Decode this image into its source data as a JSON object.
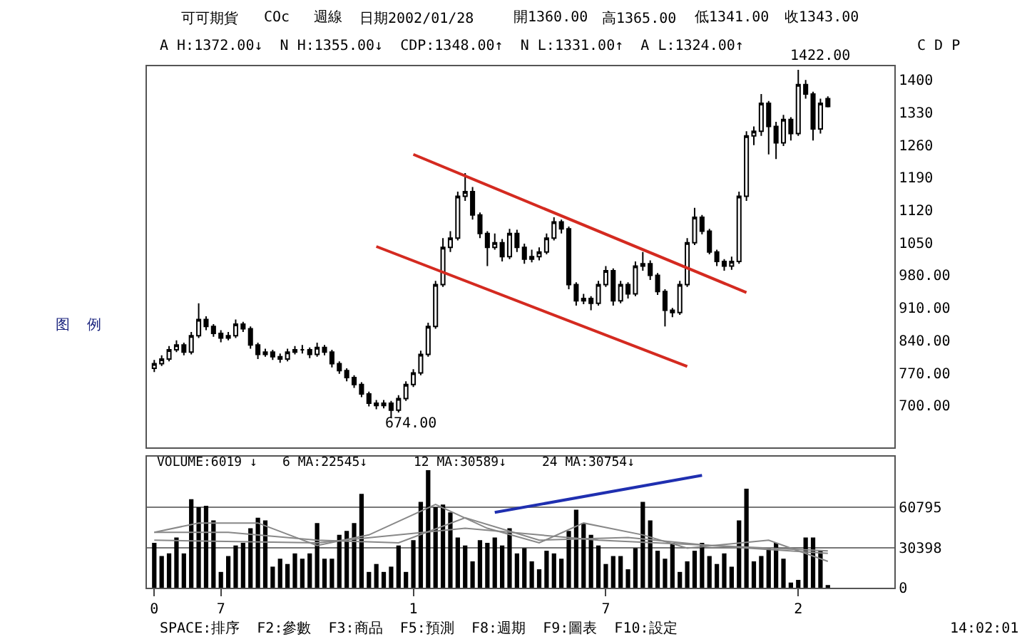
{
  "chart_data": [
    {
      "type": "candlestick",
      "grid": false,
      "tick_labels": "y",
      "categories": [
        null,
        null,
        null,
        null,
        null,
        null,
        null,
        null,
        null,
        null,
        null,
        null,
        null,
        null,
        null,
        null,
        null,
        null,
        null,
        null,
        null,
        null,
        null,
        null,
        null,
        null,
        null,
        null,
        null,
        null,
        null,
        null,
        null,
        null,
        null,
        null,
        null,
        null,
        null,
        null,
        null,
        null,
        null,
        null,
        null,
        null,
        null,
        null,
        null,
        null,
        null,
        null,
        null,
        null,
        null,
        null,
        null,
        null,
        null,
        null,
        null,
        null,
        null,
        null,
        null,
        null,
        null,
        null,
        null,
        null,
        null,
        null,
        null,
        null,
        null,
        null,
        null,
        null,
        null,
        null,
        null,
        null,
        null,
        null,
        null,
        null,
        null,
        null,
        null,
        null,
        null,
        null
      ],
      "ohlc": [
        [
          780,
          798,
          772,
          790
        ],
        [
          790,
          808,
          785,
          800
        ],
        [
          800,
          828,
          795,
          820
        ],
        [
          820,
          840,
          815,
          830
        ],
        [
          830,
          835,
          808,
          815
        ],
        [
          815,
          858,
          810,
          850
        ],
        [
          850,
          920,
          845,
          885
        ],
        [
          885,
          892,
          862,
          870
        ],
        [
          870,
          875,
          848,
          855
        ],
        [
          855,
          862,
          836,
          845
        ],
        [
          845,
          858,
          840,
          850
        ],
        [
          850,
          885,
          845,
          875
        ],
        [
          875,
          880,
          858,
          865
        ],
        [
          865,
          870,
          822,
          830
        ],
        [
          830,
          835,
          800,
          810
        ],
        [
          810,
          822,
          805,
          815
        ],
        [
          815,
          820,
          798,
          805
        ],
        [
          805,
          812,
          792,
          800
        ],
        [
          800,
          822,
          795,
          815
        ],
        [
          815,
          828,
          810,
          820
        ],
        [
          820,
          830,
          812,
          820
        ],
        [
          820,
          825,
          802,
          810
        ],
        [
          810,
          835,
          805,
          825
        ],
        [
          825,
          830,
          808,
          815
        ],
        [
          815,
          820,
          782,
          790
        ],
        [
          790,
          795,
          768,
          775
        ],
        [
          775,
          780,
          752,
          760
        ],
        [
          760,
          765,
          738,
          745
        ],
        [
          745,
          750,
          718,
          725
        ],
        [
          725,
          730,
          698,
          705
        ],
        [
          705,
          712,
          692,
          700
        ],
        [
          700,
          712,
          694,
          705
        ],
        [
          705,
          710,
          674,
          690
        ],
        [
          690,
          722,
          685,
          715
        ],
        [
          715,
          752,
          710,
          745
        ],
        [
          745,
          778,
          740,
          770
        ],
        [
          770,
          818,
          765,
          810
        ],
        [
          810,
          878,
          805,
          870
        ],
        [
          870,
          968,
          865,
          960
        ],
        [
          960,
          1060,
          955,
          1040
        ],
        [
          1040,
          1075,
          1030,
          1060
        ],
        [
          1060,
          1160,
          1055,
          1150
        ],
        [
          1150,
          1200,
          1140,
          1160
        ],
        [
          1160,
          1170,
          1100,
          1110
        ],
        [
          1110,
          1115,
          1060,
          1070
        ],
        [
          1070,
          1075,
          1000,
          1040
        ],
        [
          1040,
          1070,
          1035,
          1050
        ],
        [
          1050,
          1058,
          1010,
          1020
        ],
        [
          1020,
          1080,
          1015,
          1070
        ],
        [
          1070,
          1078,
          1030,
          1040
        ],
        [
          1040,
          1048,
          1005,
          1015
        ],
        [
          1015,
          1035,
          1008,
          1020
        ],
        [
          1020,
          1040,
          1012,
          1030
        ],
        [
          1030,
          1070,
          1025,
          1060
        ],
        [
          1060,
          1105,
          1055,
          1095
        ],
        [
          1095,
          1100,
          1070,
          1080
        ],
        [
          1080,
          1085,
          950,
          960
        ],
        [
          960,
          965,
          915,
          925
        ],
        [
          925,
          940,
          918,
          930
        ],
        [
          930,
          935,
          905,
          920
        ],
        [
          920,
          968,
          915,
          960
        ],
        [
          960,
          1000,
          955,
          990
        ],
        [
          990,
          995,
          915,
          925
        ],
        [
          925,
          968,
          920,
          960
        ],
        [
          960,
          965,
          930,
          940
        ],
        [
          940,
          1010,
          935,
          1000
        ],
        [
          1000,
          1030,
          990,
          1005
        ],
        [
          1005,
          1012,
          970,
          980
        ],
        [
          980,
          985,
          938,
          945
        ],
        [
          945,
          950,
          870,
          905
        ],
        [
          905,
          910,
          890,
          900
        ],
        [
          900,
          968,
          895,
          960
        ],
        [
          960,
          1060,
          955,
          1050
        ],
        [
          1050,
          1125,
          1045,
          1105
        ],
        [
          1105,
          1110,
          1068,
          1075
        ],
        [
          1075,
          1080,
          1025,
          1030
        ],
        [
          1030,
          1035,
          1000,
          1010
        ],
        [
          1010,
          1015,
          990,
          1000
        ],
        [
          1000,
          1020,
          992,
          1010
        ],
        [
          1010,
          1160,
          1005,
          1150
        ],
        [
          1150,
          1290,
          1140,
          1280
        ],
        [
          1280,
          1300,
          1260,
          1290
        ],
        [
          1290,
          1370,
          1280,
          1350
        ],
        [
          1350,
          1355,
          1240,
          1300
        ],
        [
          1300,
          1310,
          1230,
          1265
        ],
        [
          1265,
          1325,
          1258,
          1315
        ],
        [
          1315,
          1320,
          1270,
          1285
        ],
        [
          1285,
          1422,
          1280,
          1390
        ],
        [
          1390,
          1400,
          1360,
          1370
        ],
        [
          1370,
          1375,
          1270,
          1295
        ],
        [
          1295,
          1360,
          1285,
          1350
        ],
        [
          1360,
          1365,
          1341,
          1343
        ]
      ],
      "series": [
        {
          "type": "line",
          "color": "#d42a20",
          "values": [
            null,
            null,
            null,
            null,
            null,
            null,
            null,
            null,
            null,
            null,
            null,
            null,
            null,
            null,
            null,
            null,
            null,
            null,
            null,
            null,
            null,
            null,
            null,
            null,
            null,
            null,
            null,
            null,
            null,
            null,
            null,
            null,
            null,
            null,
            null,
            1240,
            null,
            null,
            null,
            null,
            null,
            null,
            null,
            null,
            null,
            null,
            null,
            null,
            null,
            null,
            null,
            null,
            null,
            null,
            null,
            null,
            null,
            null,
            null,
            null,
            null,
            null,
            null,
            null,
            null,
            null,
            null,
            null,
            null,
            null,
            null,
            null,
            null,
            null,
            null,
            null,
            null,
            null,
            null,
            null,
            943,
            null,
            null,
            null,
            null,
            null,
            null,
            null,
            null,
            null,
            null,
            null
          ]
        },
        {
          "type": "line",
          "color": "#d42a20",
          "values": [
            null,
            null,
            null,
            null,
            null,
            null,
            null,
            null,
            null,
            null,
            null,
            null,
            null,
            null,
            null,
            null,
            null,
            null,
            null,
            null,
            null,
            null,
            null,
            null,
            null,
            null,
            null,
            null,
            null,
            null,
            1042,
            null,
            null,
            null,
            null,
            null,
            null,
            null,
            null,
            null,
            null,
            null,
            null,
            null,
            null,
            null,
            null,
            null,
            null,
            null,
            null,
            null,
            null,
            null,
            null,
            null,
            null,
            null,
            null,
            null,
            null,
            null,
            null,
            null,
            null,
            null,
            null,
            null,
            null,
            null,
            null,
            null,
            784,
            null,
            null,
            null,
            null,
            null,
            null,
            null,
            null,
            null,
            null,
            null,
            null,
            null,
            null,
            null,
            null,
            null,
            null,
            null
          ]
        }
      ],
      "ylim": [
        610,
        1430
      ],
      "yticks": [
        {
          "value": 700,
          "label": "700.00"
        },
        {
          "value": 770,
          "label": "770.00"
        },
        {
          "value": 840,
          "label": "840.00"
        },
        {
          "value": 910,
          "label": "910.00"
        },
        {
          "value": 980,
          "label": "980.00"
        },
        1050,
        1120,
        1190,
        1260,
        1330,
        1400
      ],
      "annotations": [
        "可可期貨",
        "COc",
        "週線",
        "日期2002/01/28",
        "開1360.00",
        "高1365.00",
        "低1341.00",
        "收1343.00",
        "A H:1372.00↓  N H:1355.00↓  CDP:1348.00↑  N L:1331.00↑  A L:1324.00↑",
        "C D P",
        "图  例",
        "1422.00",
        "674.00",
        "SPACE:排序  F2:參數  F3:商品  F5:預測  F8:週期  F9:圖表  F10:設定",
        "14:02:01"
      ]
    },
    {
      "type": "bar",
      "grid": "y",
      "categories": [
        "0",
        null,
        null,
        null,
        null,
        null,
        null,
        null,
        null,
        "7",
        null,
        null,
        null,
        null,
        null,
        null,
        null,
        null,
        null,
        null,
        null,
        null,
        null,
        null,
        null,
        null,
        null,
        null,
        null,
        null,
        null,
        null,
        null,
        null,
        null,
        "1",
        null,
        null,
        null,
        null,
        null,
        null,
        null,
        null,
        null,
        null,
        null,
        null,
        null,
        null,
        null,
        null,
        null,
        null,
        null,
        null,
        null,
        null,
        null,
        null,
        null,
        "7",
        null,
        null,
        null,
        null,
        null,
        null,
        null,
        null,
        null,
        null,
        null,
        null,
        null,
        null,
        null,
        null,
        null,
        null,
        null,
        null,
        null,
        null,
        null,
        null,
        null,
        "2",
        null,
        null,
        null,
        null
      ],
      "series": [
        {
          "type": "bar",
          "color": "#000000",
          "values": [
            34000,
            24000,
            26000,
            38000,
            26000,
            67000,
            61000,
            62000,
            51000,
            12000,
            24000,
            32000,
            34000,
            45000,
            53000,
            51000,
            16000,
            22000,
            18000,
            26000,
            22000,
            26000,
            49000,
            22000,
            22000,
            40000,
            43000,
            49000,
            71000,
            12000,
            18000,
            12000,
            16000,
            32000,
            12000,
            36000,
            65000,
            89000,
            61000,
            63000,
            57000,
            38000,
            32000,
            20000,
            36000,
            34000,
            38000,
            32000,
            45000,
            26000,
            30000,
            20000,
            14000,
            28000,
            26000,
            22000,
            43000,
            59000,
            49000,
            40000,
            32000,
            18000,
            24000,
            24000,
            14000,
            30000,
            65000,
            51000,
            28000,
            22000,
            34000,
            12000,
            20000,
            28000,
            34000,
            24000,
            18000,
            26000,
            16000,
            51000,
            75000,
            20000,
            24000,
            30000,
            34000,
            22000,
            4000,
            6000,
            38000,
            38000,
            28000,
            2000
          ]
        },
        {
          "type": "line",
          "color": "#888888",
          "values": [
            42000,
            null,
            null,
            null,
            null,
            null,
            49000,
            null,
            null,
            null,
            null,
            null,
            null,
            null,
            49000,
            null,
            null,
            null,
            null,
            null,
            null,
            null,
            32000,
            null,
            null,
            null,
            null,
            null,
            null,
            40000,
            null,
            null,
            null,
            null,
            null,
            null,
            null,
            null,
            63000,
            null,
            null,
            null,
            null,
            null,
            null,
            45000,
            null,
            null,
            null,
            null,
            null,
            null,
            34000,
            null,
            null,
            null,
            null,
            null,
            49000,
            null,
            null,
            null,
            null,
            null,
            null,
            null,
            40000,
            null,
            null,
            null,
            null,
            null,
            30000,
            null,
            null,
            null,
            null,
            null,
            null,
            null,
            null,
            null,
            null,
            36000,
            null,
            null,
            null,
            null,
            null,
            null,
            null,
            20000
          ]
        },
        {
          "type": "line",
          "color": "#888888",
          "values": [
            42000,
            null,
            null,
            null,
            null,
            null,
            null,
            null,
            null,
            null,
            42000,
            null,
            null,
            null,
            null,
            null,
            null,
            null,
            null,
            null,
            null,
            null,
            36000,
            null,
            null,
            null,
            null,
            null,
            null,
            null,
            null,
            null,
            null,
            34000,
            null,
            null,
            null,
            null,
            null,
            null,
            null,
            null,
            53000,
            null,
            null,
            null,
            null,
            null,
            null,
            null,
            null,
            null,
            36000,
            null,
            null,
            null,
            null,
            null,
            null,
            null,
            null,
            null,
            null,
            null,
            38000,
            null,
            null,
            null,
            null,
            null,
            null,
            null,
            null,
            null,
            null,
            32000,
            null,
            null,
            null,
            null,
            null,
            null,
            null,
            null,
            null,
            null,
            null,
            null,
            null,
            null,
            null,
            26000
          ]
        },
        {
          "type": "line",
          "color": "#888888",
          "values": [
            36000,
            null,
            null,
            null,
            null,
            null,
            null,
            null,
            null,
            null,
            null,
            null,
            null,
            null,
            null,
            null,
            null,
            null,
            null,
            null,
            null,
            null,
            34000,
            null,
            null,
            null,
            null,
            null,
            null,
            null,
            null,
            null,
            null,
            null,
            null,
            null,
            null,
            null,
            null,
            null,
            null,
            null,
            45000,
            null,
            null,
            null,
            null,
            null,
            null,
            null,
            null,
            null,
            null,
            null,
            null,
            null,
            null,
            null,
            null,
            null,
            36000,
            null,
            null,
            null,
            null,
            null,
            null,
            null,
            null,
            null,
            null,
            null,
            null,
            null,
            null,
            null,
            null,
            null,
            null,
            null,
            null,
            null,
            null,
            null,
            null,
            null,
            null,
            null,
            null,
            null,
            null,
            28000
          ]
        },
        {
          "type": "line",
          "color": "#1f2fb0",
          "values": [
            null,
            null,
            null,
            null,
            null,
            null,
            null,
            null,
            null,
            null,
            null,
            null,
            null,
            null,
            null,
            null,
            null,
            null,
            null,
            null,
            null,
            null,
            null,
            null,
            null,
            null,
            null,
            null,
            null,
            null,
            null,
            null,
            null,
            null,
            null,
            null,
            null,
            null,
            null,
            null,
            null,
            null,
            null,
            null,
            null,
            null,
            57000,
            null,
            null,
            null,
            null,
            null,
            null,
            null,
            null,
            null,
            null,
            null,
            null,
            null,
            null,
            null,
            null,
            null,
            null,
            null,
            null,
            null,
            null,
            null,
            null,
            null,
            null,
            null,
            85000,
            null,
            null,
            null,
            null,
            null,
            null,
            null,
            null,
            null,
            null,
            null,
            null,
            null,
            null,
            null,
            null,
            null
          ]
        }
      ],
      "ylim": [
        0,
        99000
      ],
      "yticks": [
        0,
        30398,
        60795
      ],
      "annotations": [
        "VOLUME:6019 ↓",
        "6 MA:22545↓",
        "12 MA:30589↓",
        "24 MA:30754↓"
      ]
    }
  ]
}
